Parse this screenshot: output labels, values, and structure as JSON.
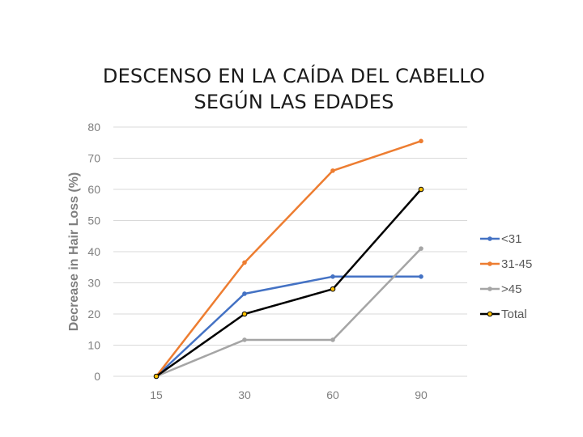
{
  "title_line1": "DESCENSO EN LA CAÍDA DEL CABELLO",
  "title_line2": "SEGÚN LAS EDADES",
  "chart_data": {
    "type": "line",
    "title": "DESCENSO EN LA CAÍDA DEL CABELLO SEGÚN LAS EDADES",
    "xlabel": "",
    "ylabel": "Decrease in Hair Loss (%)",
    "categories": [
      "15",
      "30",
      "60",
      "90"
    ],
    "ylim": [
      0,
      80
    ],
    "yticks": [
      0,
      10,
      20,
      30,
      40,
      50,
      60,
      70,
      80
    ],
    "grid": true,
    "legend_position": "right",
    "series": [
      {
        "name": "<31",
        "values": [
          0,
          26.5,
          32,
          32
        ],
        "color": "#4472c4"
      },
      {
        "name": "31-45",
        "values": [
          0,
          36.5,
          66,
          75.5
        ],
        "color": "#ed7d31"
      },
      {
        "name": ">45",
        "values": [
          0,
          11.7,
          11.7,
          41
        ],
        "color": "#a5a5a5"
      },
      {
        "name": "Total",
        "values": [
          0,
          20,
          28,
          60
        ],
        "color": "#000000",
        "marker_fill": "#ffc000"
      }
    ]
  }
}
